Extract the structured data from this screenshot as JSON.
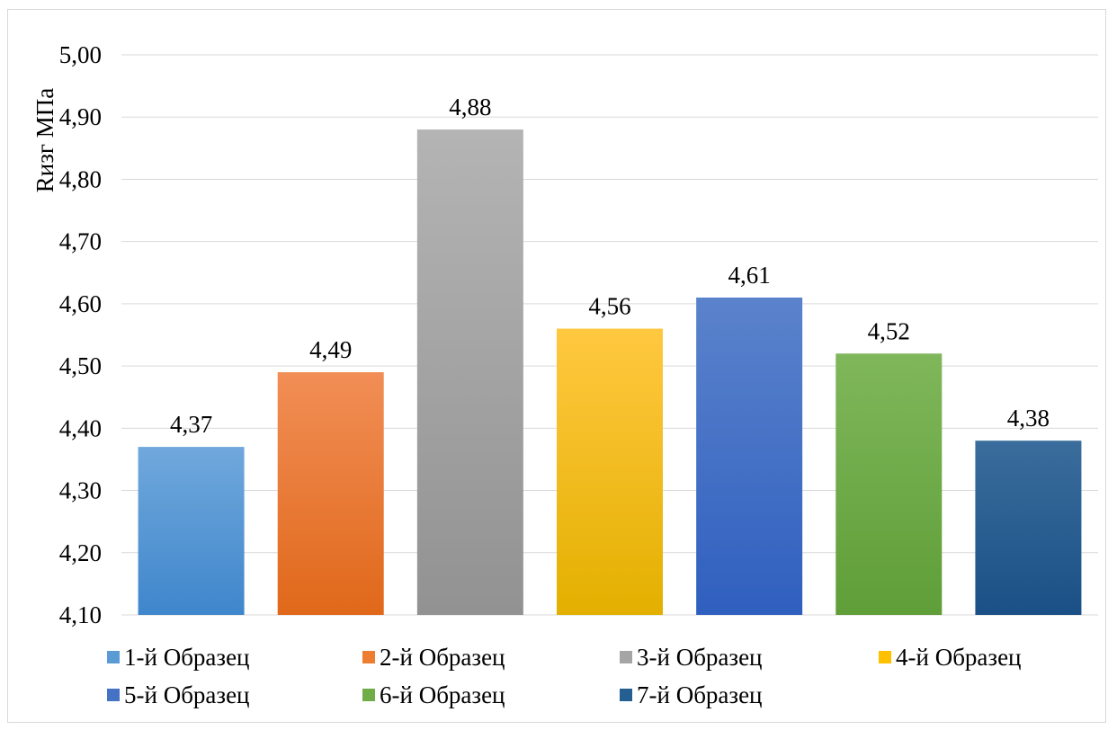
{
  "chart_data": {
    "type": "bar",
    "title": "",
    "xlabel": "",
    "ylabel": "Rизг МПа",
    "ylim": [
      4.1,
      5.0
    ],
    "yticks": [
      "4,10",
      "4,20",
      "4,30",
      "4,40",
      "4,50",
      "4,60",
      "4,70",
      "4,80",
      "4,90",
      "5,00"
    ],
    "grid": true,
    "legend_position": "bottom",
    "series": [
      {
        "name": "1-й Образец",
        "value": 4.37,
        "label": "4,37",
        "color": "#5b9bd5",
        "color_light": "#70a8dc",
        "color_dark": "#3f86cc"
      },
      {
        "name": "2-й Образец",
        "value": 4.49,
        "label": "4,49",
        "color": "#ed7d31",
        "color_light": "#f18e56",
        "color_dark": "#e0681a"
      },
      {
        "name": "3-й Образец",
        "value": 4.88,
        "label": "4,88",
        "color": "#a5a5a5",
        "color_light": "#b4b4b4",
        "color_dark": "#929292"
      },
      {
        "name": "4-й Образец",
        "value": 4.56,
        "label": "4,56",
        "color": "#ffc000",
        "color_light": "#ffc840",
        "color_dark": "#e3b000"
      },
      {
        "name": "5-й Образец",
        "value": 4.61,
        "label": "4,61",
        "color": "#4472c4",
        "color_light": "#5b83cc",
        "color_dark": "#2f5fbf"
      },
      {
        "name": "6-й Образец",
        "value": 4.52,
        "label": "4,52",
        "color": "#70ad47",
        "color_light": "#7fb75a",
        "color_dark": "#5f9e38"
      },
      {
        "name": "7-й Образец",
        "value": 4.38,
        "label": "4,38",
        "color": "#255e91",
        "color_light": "#3a6d9c",
        "color_dark": "#1a5086"
      }
    ]
  }
}
